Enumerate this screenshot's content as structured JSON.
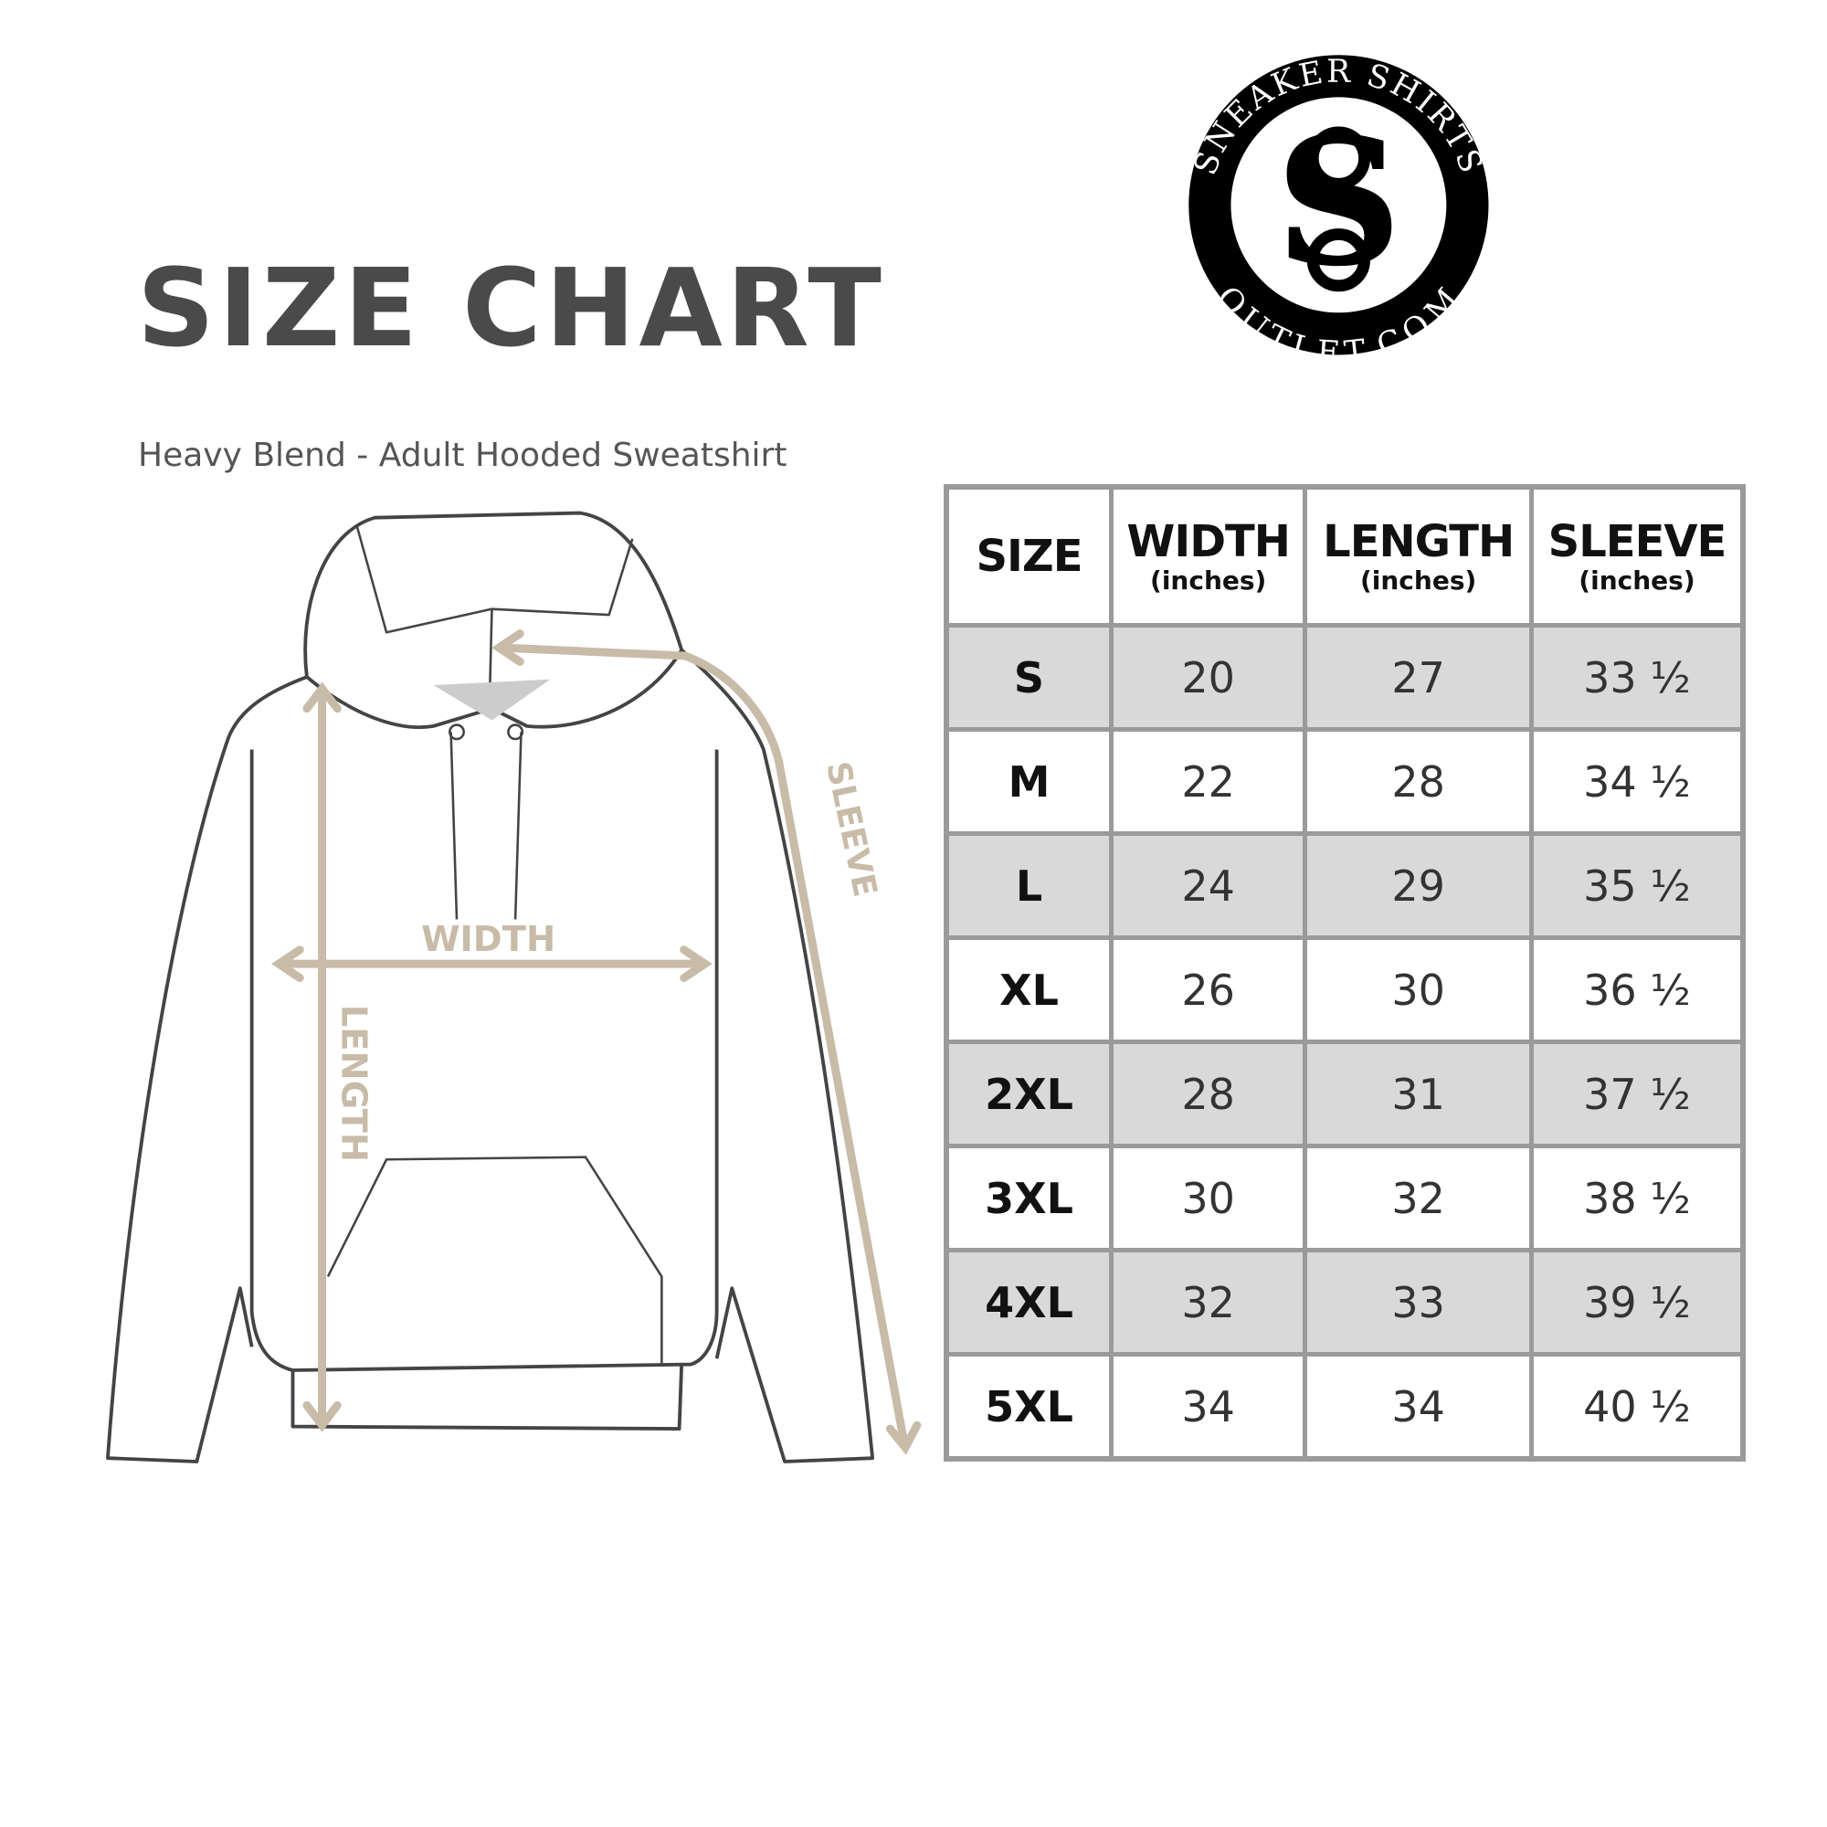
{
  "title": "SIZE CHART",
  "subtitle": "Heavy Blend - Adult Hooded Sweatshirt",
  "logo": {
    "top_text": "SNEAKER SHIRTS",
    "bottom_text": "OUTLET.COM"
  },
  "diagram": {
    "width_label": "WIDTH",
    "length_label": "LENGTH",
    "sleeve_label": "SLEEVE"
  },
  "colors": {
    "measure": "#c8bba8",
    "row_shade": "#d9d9d9",
    "grid": "#9a9a9a",
    "title": "#4a4a4a"
  },
  "table": {
    "headers": [
      {
        "main": "SIZE",
        "sub": ""
      },
      {
        "main": "WIDTH",
        "sub": "(inches)"
      },
      {
        "main": "LENGTH",
        "sub": "(inches)"
      },
      {
        "main": "SLEEVE",
        "sub": "(inches)"
      }
    ],
    "rows": [
      [
        "S",
        "20",
        "27",
        "33 ½"
      ],
      [
        "M",
        "22",
        "28",
        "34 ½"
      ],
      [
        "L",
        "24",
        "29",
        "35 ½"
      ],
      [
        "XL",
        "26",
        "30",
        "36 ½"
      ],
      [
        "2XL",
        "28",
        "31",
        "37 ½"
      ],
      [
        "3XL",
        "30",
        "32",
        "38 ½"
      ],
      [
        "4XL",
        "32",
        "33",
        "39 ½"
      ],
      [
        "5XL",
        "34",
        "34",
        "40 ½"
      ]
    ]
  }
}
